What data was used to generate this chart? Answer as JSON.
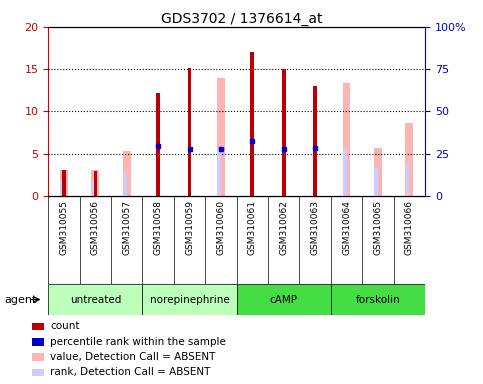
{
  "title": "GDS3702 / 1376614_at",
  "samples": [
    "GSM310055",
    "GSM310056",
    "GSM310057",
    "GSM310058",
    "GSM310059",
    "GSM310060",
    "GSM310061",
    "GSM310062",
    "GSM310063",
    "GSM310064",
    "GSM310065",
    "GSM310066"
  ],
  "red_bars": [
    3.0,
    2.9,
    null,
    12.2,
    15.1,
    null,
    17.0,
    15.0,
    13.0,
    null,
    null,
    null
  ],
  "pink_bars": [
    3.1,
    3.0,
    5.3,
    null,
    null,
    14.0,
    null,
    null,
    null,
    13.4,
    5.7,
    8.6
  ],
  "blue_dots": [
    null,
    null,
    null,
    5.9,
    5.6,
    5.6,
    6.5,
    5.6,
    5.7,
    null,
    null,
    null
  ],
  "lavender_bars": [
    1.8,
    1.8,
    2.8,
    null,
    null,
    5.6,
    null,
    null,
    null,
    5.7,
    3.3,
    4.0
  ],
  "groups": [
    {
      "label": "untreated",
      "start": 0,
      "end": 2
    },
    {
      "label": "norepinephrine",
      "start": 3,
      "end": 5
    },
    {
      "label": "cAMP",
      "start": 6,
      "end": 8
    },
    {
      "label": "forskolin",
      "start": 9,
      "end": 11
    }
  ],
  "ylim_left": [
    0,
    20
  ],
  "ylim_right": [
    0,
    100
  ],
  "yticks_left": [
    0,
    5,
    10,
    15,
    20
  ],
  "yticks_right": [
    0,
    25,
    50,
    75,
    100
  ],
  "ytick_labels_right": [
    "0",
    "25",
    "50",
    "75",
    "100%"
  ],
  "left_axis_color": "#cc0000",
  "right_axis_color": "#0000cc",
  "pink_color": "#ffb3b3",
  "lavender_color": "#ccccff",
  "red_color": "#bb0000",
  "blue_color": "#0000cc",
  "group_light_green": "#ccffcc",
  "group_bright_green": "#44ee44",
  "group_border": "#000000",
  "sample_box_bg": "#d3d3d3",
  "legend_items": [
    {
      "color": "#bb0000",
      "label": "count"
    },
    {
      "color": "#0000cc",
      "label": "percentile rank within the sample"
    },
    {
      "color": "#ffb3b3",
      "label": "value, Detection Call = ABSENT"
    },
    {
      "color": "#ccccff",
      "label": "rank, Detection Call = ABSENT"
    }
  ]
}
